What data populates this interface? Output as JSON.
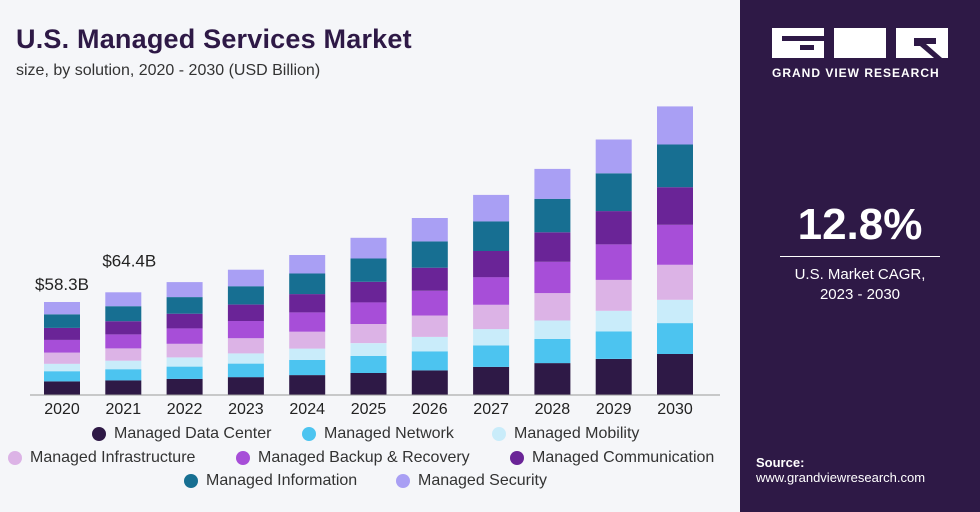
{
  "brand": {
    "name": "GRAND VIEW RESEARCH"
  },
  "callout": {
    "value": "12.8%",
    "label_line1": "U.S. Market CAGR,",
    "label_line2": "2023 - 2030"
  },
  "source": {
    "label": "Source:",
    "url": "www.grandviewresearch.com"
  },
  "chart_data": {
    "type": "bar",
    "stacked": true,
    "title": "U.S. Managed Services Market",
    "subtitle": "size, by solution, 2020 - 2030 (USD Billion)",
    "xlabel": "",
    "ylabel": "",
    "grid": false,
    "legend_position": "bottom",
    "categories": [
      "2020",
      "2021",
      "2022",
      "2023",
      "2024",
      "2025",
      "2026",
      "2027",
      "2028",
      "2029",
      "2030"
    ],
    "annotations": [
      {
        "category": "2020",
        "text": "$58.3B"
      },
      {
        "category": "2021",
        "text": "$64.4B"
      }
    ],
    "colors": [
      "#2e1946",
      "#4cc4f0",
      "#c9ecfa",
      "#dcb3e6",
      "#a74ed8",
      "#6a2497",
      "#176f92",
      "#a99ff4"
    ],
    "series": [
      {
        "name": "Managed Data Center",
        "values": [
          8.5,
          9.2,
          10.1,
          11.2,
          12.5,
          13.8,
          15.4,
          17.6,
          20.0,
          22.6,
          25.7
        ]
      },
      {
        "name": "Managed Network",
        "values": [
          6.4,
          7.0,
          7.7,
          8.5,
          9.5,
          10.7,
          12.0,
          13.5,
          15.2,
          17.2,
          19.4
        ]
      },
      {
        "name": "Managed Mobility",
        "values": [
          4.7,
          5.3,
          5.8,
          6.4,
          7.1,
          8.0,
          9.0,
          10.2,
          11.5,
          13.0,
          14.6
        ]
      },
      {
        "name": "Managed Infrastructure",
        "values": [
          7.0,
          7.7,
          8.5,
          9.5,
          10.6,
          12.0,
          13.5,
          15.2,
          17.2,
          19.4,
          21.9
        ]
      },
      {
        "name": "Managed Backup & Recovery",
        "values": [
          8.0,
          8.8,
          9.7,
          10.8,
          12.1,
          13.6,
          15.4,
          17.4,
          19.6,
          22.2,
          25.1
        ]
      },
      {
        "name": "Managed Communication",
        "values": [
          7.5,
          8.3,
          9.2,
          10.3,
          11.5,
          12.9,
          14.5,
          16.4,
          18.5,
          20.9,
          23.6
        ]
      },
      {
        "name": "Managed Information",
        "values": [
          8.5,
          9.4,
          10.4,
          11.5,
          12.9,
          14.6,
          16.5,
          18.6,
          21.0,
          23.7,
          26.8
        ]
      },
      {
        "name": "Managed Security",
        "values": [
          7.7,
          8.7,
          9.4,
          10.4,
          11.6,
          13.0,
          14.7,
          16.6,
          18.8,
          21.2,
          23.9
        ]
      }
    ],
    "ylim": [
      0,
      190
    ]
  }
}
